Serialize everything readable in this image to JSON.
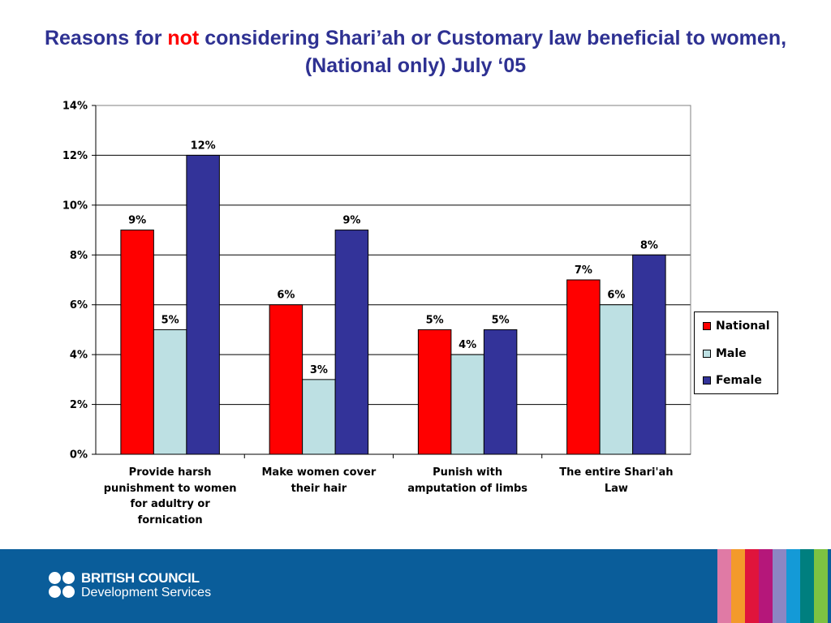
{
  "title": {
    "prefix": "Reasons for ",
    "emphasis": "not",
    "suffix": " considering Shari’ah or Customary law beneficial to women, (National only) July ‘05"
  },
  "chart_data": {
    "type": "bar",
    "categories": [
      "Provide harsh punishment to women for adultry or fornication",
      "Make women cover their hair",
      "Punish with amputation of limbs",
      "The entire Shari'ah Law"
    ],
    "series": [
      {
        "name": "National",
        "color": "#FF0000",
        "values": [
          9,
          6,
          5,
          7
        ],
        "labels": [
          "9%",
          "6%",
          "5%",
          "7%"
        ]
      },
      {
        "name": "Male",
        "color": "#BDE0E3",
        "values": [
          5,
          3,
          4,
          6
        ],
        "labels": [
          "5%",
          "3%",
          "4%",
          "6%"
        ]
      },
      {
        "name": "Female",
        "color": "#333399",
        "values": [
          12,
          9,
          5,
          8
        ],
        "labels": [
          "12%",
          "9%",
          "5%",
          "8%"
        ]
      }
    ],
    "y_ticks": [
      "0%",
      "2%",
      "4%",
      "6%",
      "8%",
      "10%",
      "12%",
      "14%"
    ],
    "ylim": [
      0,
      14
    ],
    "grid": true,
    "legend_position": "right"
  },
  "footer": {
    "brand_line1": "BRITISH COUNCIL",
    "brand_line2": "Development Services",
    "stripe_colors": [
      "#E07AA5",
      "#F39A2B",
      "#E0143C",
      "#B5177A",
      "#8C86C3",
      "#149AD7",
      "#007F7F",
      "#7DC242"
    ]
  }
}
